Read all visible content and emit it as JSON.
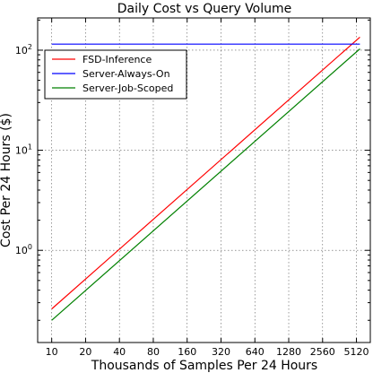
{
  "chart_data": {
    "type": "line",
    "title": "Daily Cost vs Query Volume",
    "xlabel": "Thousands of Samples Per 24 Hours",
    "ylabel": "Cost Per 24 Hours ($)",
    "x_scale": "log2",
    "y_scale": "log10",
    "x_ticks": [
      10,
      20,
      40,
      80,
      160,
      320,
      640,
      1280,
      2560,
      5120
    ],
    "xlim": [
      7.5,
      6800
    ],
    "ylim": [
      0.12,
      210
    ],
    "y_ticks": [
      {
        "value": 1,
        "label": "10",
        "exp": "0"
      },
      {
        "value": 10,
        "label": "10",
        "exp": "1"
      },
      {
        "value": 100,
        "label": "10",
        "exp": "2"
      }
    ],
    "grid": true,
    "legend_position": "top-left",
    "series": [
      {
        "name": "FSD-Inference",
        "color": "#ff0000",
        "x": [
          10,
          5500
        ],
        "y": [
          0.26,
          135
        ]
      },
      {
        "name": "Server-Always-On",
        "color": "#0000ff",
        "x": [
          10,
          5500
        ],
        "y": [
          115,
          115
        ]
      },
      {
        "name": "Server-Job-Scoped",
        "color": "#008000",
        "x": [
          10,
          5500
        ],
        "y": [
          0.2,
          103
        ]
      }
    ]
  }
}
